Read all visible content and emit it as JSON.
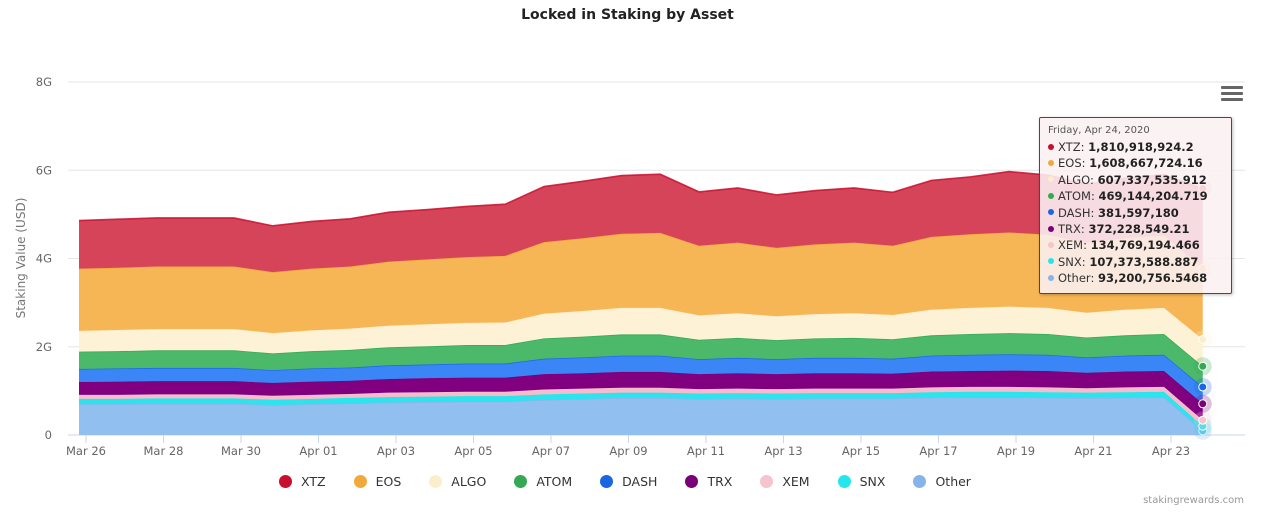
{
  "chart_data": {
    "type": "area",
    "stacked": true,
    "title": "Locked in Staking by Asset",
    "xlabel": "",
    "ylabel": "Staking Value (USD)",
    "ylim": [
      0,
      8000000000
    ],
    "yticks": [
      0,
      2000000000,
      4000000000,
      6000000000,
      8000000000
    ],
    "ytick_labels": [
      "0",
      "2G",
      "4G",
      "6G",
      "8G"
    ],
    "grid": true,
    "legend_position": "bottom",
    "x": [
      "Mar 26",
      "Mar 27",
      "Mar 28",
      "Mar 29",
      "Mar 30",
      "Mar 31",
      "Apr 01",
      "Apr 02",
      "Apr 03",
      "Apr 04",
      "Apr 05",
      "Apr 06",
      "Apr 07",
      "Apr 08",
      "Apr 09",
      "Apr 10",
      "Apr 11",
      "Apr 12",
      "Apr 13",
      "Apr 14",
      "Apr 15",
      "Apr 16",
      "Apr 17",
      "Apr 18",
      "Apr 19",
      "Apr 20",
      "Apr 21",
      "Apr 22",
      "Apr 23",
      "Apr 24"
    ],
    "xtick_labels": [
      "Mar 26",
      "Mar 28",
      "Mar 30",
      "Apr 01",
      "Apr 03",
      "Apr 05",
      "Apr 07",
      "Apr 09",
      "Apr 11",
      "Apr 13",
      "Apr 15",
      "Apr 17",
      "Apr 19",
      "Apr 21",
      "Apr 23"
    ],
    "xtick_indices": [
      0,
      2,
      4,
      6,
      8,
      10,
      12,
      14,
      16,
      18,
      20,
      22,
      24,
      26,
      28
    ],
    "series": [
      {
        "name": "Other",
        "color": "#90bff0",
        "values": [
          0.7,
          0.7,
          0.71,
          0.71,
          0.71,
          0.68,
          0.7,
          0.72,
          0.74,
          0.75,
          0.76,
          0.76,
          0.8,
          0.82,
          0.84,
          0.84,
          0.82,
          0.83,
          0.82,
          0.83,
          0.83,
          0.83,
          0.85,
          0.86,
          0.86,
          0.85,
          0.84,
          0.85,
          0.86,
          0.093
        ]
      },
      {
        "name": "SNX",
        "color": "#2de3ee",
        "values": [
          0.12,
          0.12,
          0.12,
          0.12,
          0.12,
          0.12,
          0.12,
          0.12,
          0.12,
          0.12,
          0.12,
          0.12,
          0.12,
          0.12,
          0.12,
          0.12,
          0.12,
          0.12,
          0.12,
          0.12,
          0.12,
          0.12,
          0.12,
          0.12,
          0.12,
          0.12,
          0.12,
          0.12,
          0.12,
          0.107
        ]
      },
      {
        "name": "XEM",
        "color": "#f7bccb",
        "values": [
          0.09,
          0.09,
          0.09,
          0.09,
          0.09,
          0.09,
          0.09,
          0.09,
          0.1,
          0.1,
          0.1,
          0.1,
          0.11,
          0.11,
          0.11,
          0.11,
          0.1,
          0.1,
          0.1,
          0.1,
          0.1,
          0.1,
          0.11,
          0.11,
          0.11,
          0.11,
          0.1,
          0.11,
          0.11,
          0.135
        ]
      },
      {
        "name": "TRX",
        "color": "#800080",
        "values": [
          0.29,
          0.3,
          0.3,
          0.3,
          0.3,
          0.29,
          0.3,
          0.3,
          0.31,
          0.32,
          0.32,
          0.32,
          0.35,
          0.35,
          0.36,
          0.36,
          0.34,
          0.35,
          0.34,
          0.35,
          0.35,
          0.34,
          0.36,
          0.36,
          0.37,
          0.37,
          0.35,
          0.36,
          0.36,
          0.372
        ]
      },
      {
        "name": "DASH",
        "color": "#3b86f7",
        "values": [
          0.3,
          0.3,
          0.3,
          0.3,
          0.3,
          0.29,
          0.3,
          0.3,
          0.31,
          0.31,
          0.32,
          0.32,
          0.35,
          0.36,
          0.37,
          0.37,
          0.34,
          0.35,
          0.34,
          0.35,
          0.35,
          0.34,
          0.36,
          0.37,
          0.37,
          0.37,
          0.35,
          0.36,
          0.37,
          0.382
        ]
      },
      {
        "name": "ATOM",
        "color": "#4cb86a",
        "values": [
          0.39,
          0.39,
          0.4,
          0.4,
          0.4,
          0.38,
          0.39,
          0.4,
          0.41,
          0.41,
          0.42,
          0.42,
          0.46,
          0.47,
          0.48,
          0.48,
          0.44,
          0.45,
          0.43,
          0.44,
          0.45,
          0.44,
          0.46,
          0.47,
          0.48,
          0.47,
          0.45,
          0.46,
          0.47,
          0.469
        ]
      },
      {
        "name": "ALGO",
        "color": "#fdf2d5",
        "values": [
          0.47,
          0.48,
          0.48,
          0.48,
          0.48,
          0.46,
          0.47,
          0.48,
          0.49,
          0.5,
          0.5,
          0.51,
          0.56,
          0.58,
          0.6,
          0.6,
          0.55,
          0.56,
          0.54,
          0.55,
          0.56,
          0.55,
          0.58,
          0.59,
          0.6,
          0.59,
          0.56,
          0.58,
          0.59,
          0.607
        ]
      },
      {
        "name": "EOS",
        "color": "#f7b655",
        "values": [
          1.41,
          1.41,
          1.42,
          1.42,
          1.42,
          1.38,
          1.4,
          1.41,
          1.45,
          1.47,
          1.49,
          1.51,
          1.62,
          1.65,
          1.68,
          1.7,
          1.58,
          1.6,
          1.55,
          1.58,
          1.6,
          1.57,
          1.65,
          1.67,
          1.68,
          1.66,
          1.58,
          1.62,
          1.64,
          1.609
        ]
      },
      {
        "name": "XTZ",
        "color": "#d6445a",
        "values": [
          1.09,
          1.1,
          1.1,
          1.1,
          1.1,
          1.05,
          1.07,
          1.08,
          1.12,
          1.13,
          1.15,
          1.17,
          1.26,
          1.29,
          1.32,
          1.33,
          1.22,
          1.24,
          1.2,
          1.22,
          1.24,
          1.21,
          1.28,
          1.3,
          1.38,
          1.35,
          1.33,
          1.36,
          1.38,
          1.811
        ]
      }
    ],
    "value_unit": "billions USD (approximate, read from chart)",
    "tooltip": {
      "date": "Friday, Apr 24, 2020",
      "rows": [
        {
          "name": "XTZ",
          "value": "1,810,918,924.2",
          "color": "#c8102e"
        },
        {
          "name": "EOS",
          "value": "1,608,667,724.16",
          "color": "#f2a93b"
        },
        {
          "name": "ALGO",
          "value": "607,337,535.912",
          "color": "#fbeecd"
        },
        {
          "name": "ATOM",
          "value": "469,144,204.719",
          "color": "#34a853"
        },
        {
          "name": "DASH",
          "value": "381,597,180",
          "color": "#1a66e0"
        },
        {
          "name": "TRX",
          "value": "372,228,549.21",
          "color": "#7a007a"
        },
        {
          "name": "XEM",
          "value": "134,769,194.466",
          "color": "#f5c4cf"
        },
        {
          "name": "SNX",
          "value": "107,373,588.887",
          "color": "#25e6ec"
        },
        {
          "name": "Other",
          "value": "93,200,756.5468",
          "color": "#86b4ea"
        }
      ]
    }
  },
  "legend": [
    {
      "name": "XTZ",
      "color": "#c8102e"
    },
    {
      "name": "EOS",
      "color": "#f2a93b"
    },
    {
      "name": "ALGO",
      "color": "#fbeecd"
    },
    {
      "name": "ATOM",
      "color": "#34a853"
    },
    {
      "name": "DASH",
      "color": "#1a66e0"
    },
    {
      "name": "TRX",
      "color": "#7a007a"
    },
    {
      "name": "XEM",
      "color": "#f5c4cf"
    },
    {
      "name": "SNX",
      "color": "#25e6ec"
    },
    {
      "name": "Other",
      "color": "#86b4ea"
    }
  ],
  "credit": "stakingrewards.com",
  "menu_icon": "hamburger-menu-icon"
}
